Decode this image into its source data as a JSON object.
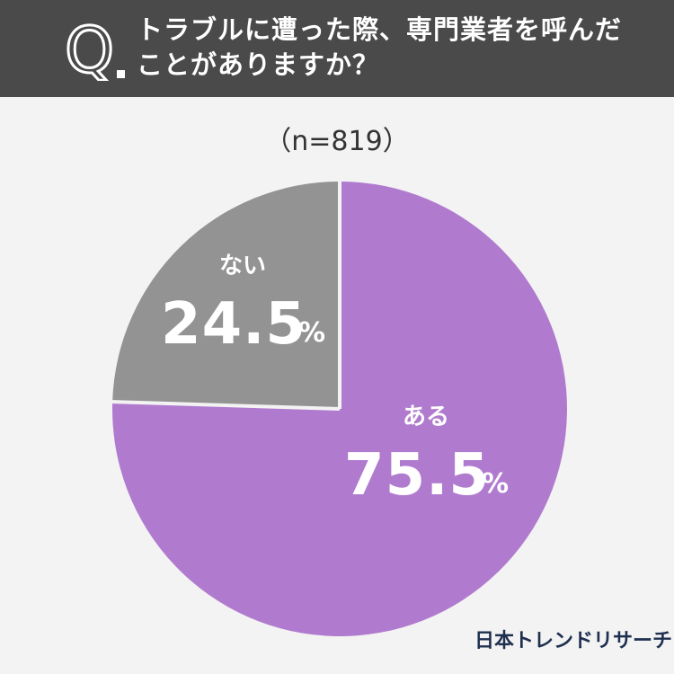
{
  "header": {
    "q_letter": "Q",
    "question_line1": "トラブルに遭った際、専門業者を呼んだ",
    "question_line2": "ことがありますか？"
  },
  "sample_size": "（n=819）",
  "brand": "日本トレンドリサーチ",
  "colors": {
    "header_bg": "#4a4a4a",
    "page_bg": "#f3f3f3",
    "yes": "#b07bce",
    "no": "#939393",
    "separator": "#f3f3f3"
  },
  "chart_data": {
    "type": "pie",
    "start": "12 o'clock, clockwise",
    "slices": [
      {
        "label": "ある",
        "value": 75.5,
        "value_text": "75.5",
        "unit": "%",
        "color": "#b07bce"
      },
      {
        "label": "ない",
        "value": 24.5,
        "value_text": "24.5",
        "unit": "%",
        "color": "#939393"
      }
    ]
  }
}
